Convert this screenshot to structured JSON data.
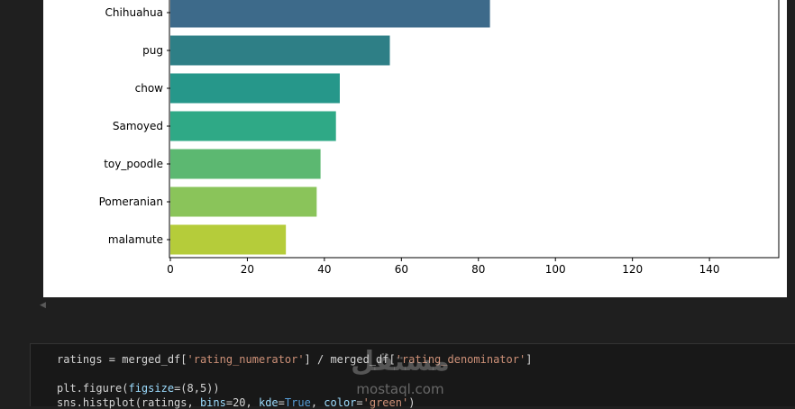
{
  "chart_data": {
    "type": "bar",
    "orientation": "horizontal",
    "categories": [
      "Chihuahua",
      "pug",
      "chow",
      "Samoyed",
      "toy_poodle",
      "Pomeranian",
      "malamute"
    ],
    "values": [
      83,
      57,
      44,
      43,
      39,
      38,
      30
    ],
    "colors": [
      "#3d6a8a",
      "#2e7f86",
      "#26978a",
      "#2fa986",
      "#5cb871",
      "#8ac45a",
      "#b5cc3a"
    ],
    "xticks": [
      "0",
      "20",
      "40",
      "60",
      "80",
      "100",
      "120",
      "140"
    ],
    "xlim": [
      0,
      158
    ],
    "grid": false
  },
  "code": {
    "line1": {
      "a": "ratings = merged_df[",
      "s1": "'rating_numerator'",
      "b": "] / merged_df[",
      "s2": "'rating_denominator'",
      "c": "]"
    },
    "line2": {
      "a": "plt.figure(",
      "p1": "figsize",
      "b": "=(8,5))"
    },
    "line3": {
      "a": "sns.histplot(ratings, ",
      "p1": "bins",
      "b": "=20, ",
      "p2": "kde",
      "c": "=",
      "k1": "True",
      "d": ", ",
      "p3": "color",
      "e": "=",
      "s1": "'green'",
      "f": ")"
    }
  },
  "watermark": {
    "arabic": "مستقل",
    "latin": "mostaql.com"
  },
  "icons": {
    "scroll": "chevron-left-icon"
  }
}
